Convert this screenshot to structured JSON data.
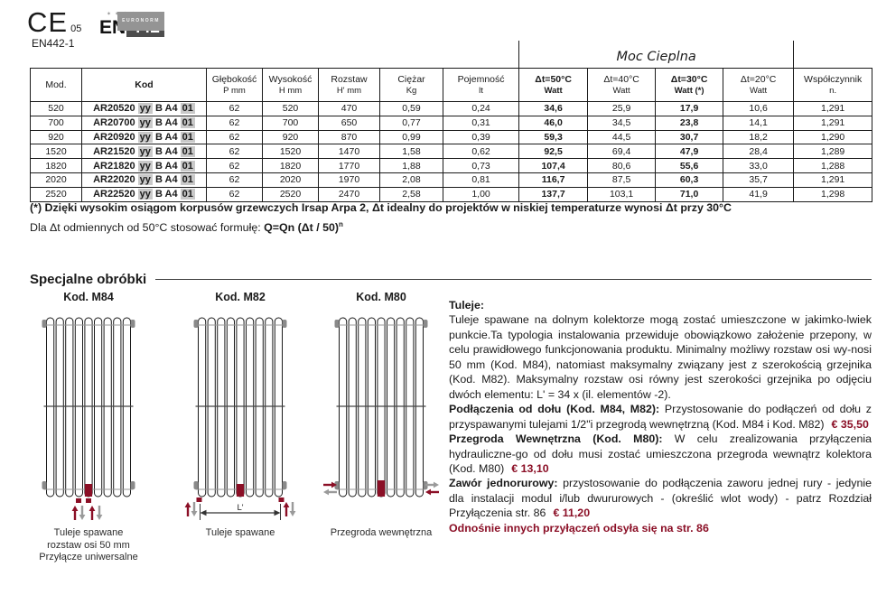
{
  "colors": {
    "maroon": "#8B0F26",
    "kod_highlight": "#c9c9c9",
    "arrow_gray": "#9a9a9a"
  },
  "certification": {
    "ce_mark": "CE",
    "ce_number": "05",
    "ce_standard": "EN442-1",
    "en_logo_prefix": "EN",
    "en_logo_number": "442",
    "en_logo_band": "EURONORM",
    "en_logo_stars": "✶✶✶✶"
  },
  "table": {
    "group_header": "Moc Cieplna",
    "columns": [
      {
        "label": "Mod.",
        "sub": "",
        "bold": false
      },
      {
        "label": "Kod",
        "sub": "",
        "bold": true
      },
      {
        "label": "Głębokość",
        "sub": "P mm",
        "bold": false
      },
      {
        "label": "Wysokość",
        "sub": "H mm",
        "bold": false
      },
      {
        "label": "Rozstaw",
        "sub": "H' mm",
        "bold": false
      },
      {
        "label": "Ciężar",
        "sub": "Kg",
        "bold": false
      },
      {
        "label": "Pojemność",
        "sub": "lt",
        "bold": false
      },
      {
        "label": "Δt=50°C",
        "sub": "Watt",
        "bold": true
      },
      {
        "label": "Δt=40°C",
        "sub": "Watt",
        "bold": false
      },
      {
        "label": "Δt=30°C",
        "sub": "Watt (*)",
        "bold": true
      },
      {
        "label": "Δt=20°C",
        "sub": "Watt",
        "bold": false
      },
      {
        "label": "Współczynnik",
        "sub": "n.",
        "bold": false
      }
    ],
    "rows": [
      {
        "mod": "520",
        "kod": [
          "AR20520",
          "yy",
          "B A4",
          "01"
        ],
        "cells": [
          "62",
          "520",
          "470",
          "0,59",
          "0,24",
          "34,6",
          "25,9",
          "17,9",
          "10,6",
          "1,291"
        ]
      },
      {
        "mod": "700",
        "kod": [
          "AR20700",
          "yy",
          "B A4",
          "01"
        ],
        "cells": [
          "62",
          "700",
          "650",
          "0,77",
          "0,31",
          "46,0",
          "34,5",
          "23,8",
          "14,1",
          "1,291"
        ]
      },
      {
        "mod": "920",
        "kod": [
          "AR20920",
          "yy",
          "B A4",
          "01"
        ],
        "cells": [
          "62",
          "920",
          "870",
          "0,99",
          "0,39",
          "59,3",
          "44,5",
          "30,7",
          "18,2",
          "1,290"
        ]
      },
      {
        "mod": "1520",
        "kod": [
          "AR21520",
          "yy",
          "B A4",
          "01"
        ],
        "cells": [
          "62",
          "1520",
          "1470",
          "1,58",
          "0,62",
          "92,5",
          "69,4",
          "47,9",
          "28,4",
          "1,289"
        ]
      },
      {
        "mod": "1820",
        "kod": [
          "AR21820",
          "yy",
          "B A4",
          "01"
        ],
        "cells": [
          "62",
          "1820",
          "1770",
          "1,88",
          "0,73",
          "107,4",
          "80,6",
          "55,6",
          "33,0",
          "1,288"
        ]
      },
      {
        "mod": "2020",
        "kod": [
          "AR22020",
          "yy",
          "B A4",
          "01"
        ],
        "cells": [
          "62",
          "2020",
          "1970",
          "2,08",
          "0,81",
          "116,7",
          "87,5",
          "60,3",
          "35,7",
          "1,291"
        ]
      },
      {
        "mod": "2520",
        "kod": [
          "AR22520",
          "yy",
          "B A4",
          "01"
        ],
        "cells": [
          "62",
          "2520",
          "2470",
          "2,58",
          "1,00",
          "137,7",
          "103,1",
          "71,0",
          "41,9",
          "1,298"
        ]
      }
    ]
  },
  "footnote": {
    "line1": "(*) Dzięki wysokim osiągom korpusów grzewczych Irsap Arpa 2, Δt idealny do projektów w niskiej temperaturze wynosi Δt przy 30°C",
    "line2_prefix": "Dla Δt odmiennych od 50°C stosować formułę: ",
    "line2_formula": "Q=Qn (Δt / 50)",
    "line2_exponent": "n"
  },
  "section": {
    "title": "Specjalne obróbki",
    "figures": [
      {
        "label": "Kod. M84",
        "variant": "m84",
        "caption": [
          "Tuleje spawane",
          "rozstaw osi 50 mm",
          "Przyłącze uniwersalne"
        ]
      },
      {
        "label": "Kod. M82",
        "variant": "m82",
        "dim_label": "L'",
        "caption": [
          "Tuleje spawane"
        ]
      },
      {
        "label": "Kod. M80",
        "variant": "m80",
        "caption": [
          "Przegroda wewnętrzna"
        ]
      }
    ],
    "text": {
      "heading": "Tuleje:",
      "paragraphs": [
        {
          "segments": [
            {
              "t": "Tuleje spawane na dolnym kolektorze mogą zostać umieszczone w jakimko-lwiek punkcie.Ta typologia instalowania przewiduje obowiązkowo założenie przepony, w celu prawidłowego funkcjonowania produktu. Minimalny możliwy rozstaw osi wy-nosi 50 mm (Kod. M84), natomiast maksymalny związany jest z szerokością grzejnika (Kod. M82). Maksymalny rozstaw osi równy jest szerokości grzejnika po odjęciu dwóch elementu: L' = 34 x (il. elementów -2)."
            }
          ]
        },
        {
          "segments": [
            {
              "t": "Podłączenia od dołu (Kod. M84, M82):",
              "b": true
            },
            {
              "t": " Przystosowanie do podłączeń od dołu z przyspawanymi tulejami 1/2\"i przegrodą wewnętrzną (Kod. M84 i Kod. M82)"
            },
            {
              "t": "€ 35,50",
              "price": true
            }
          ]
        },
        {
          "segments": [
            {
              "t": "Przegroda Wewnętrzna (Kod. M80):",
              "b": true
            },
            {
              "t": " W celu zrealizowania przyłączenia hydrauliczne-go od dołu musi zostać umieszczona przegroda wewnątrz kolektora (Kod. M80)"
            },
            {
              "t": "€ 13,10",
              "price": true
            }
          ]
        },
        {
          "segments": [
            {
              "t": "Zawór jednorurowy:",
              "b": true
            },
            {
              "t": " przystosowanie do podłączenia zaworu jednej rury - jedynie dla instalacji modul i/lub dwururowych - (określić wlot wody) - patrz Rozdział Przyłączenia str. 86"
            },
            {
              "t": "€ 11,20",
              "price": true
            }
          ]
        },
        {
          "segments": [
            {
              "t": "Odnośnie innych przyłączeń odsyła się na str. 86",
              "note": true
            }
          ]
        }
      ]
    }
  }
}
